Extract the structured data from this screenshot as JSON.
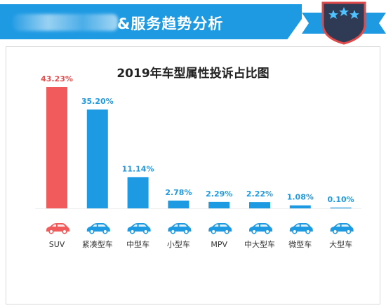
{
  "header": {
    "title": "&服务趋势分析"
  },
  "colors": {
    "header_band": "#1e9ae3",
    "bar_highlight": "#f15b5b",
    "bar_default": "#1e9ae3",
    "label_highlight": "#e84e4e",
    "label_default": "#1e9ae3"
  },
  "chart_data": {
    "type": "bar",
    "title": "2019年车型属性投诉占比图",
    "categories": [
      "SUV",
      "紧凑型车",
      "中型车",
      "小型车",
      "MPV",
      "中大型车",
      "微型车",
      "大型车"
    ],
    "values": [
      43.23,
      35.2,
      11.14,
      2.78,
      2.29,
      2.22,
      1.08,
      0.1
    ],
    "value_labels": [
      "43.23%",
      "35.20%",
      "11.14%",
      "2.78%",
      "2.29%",
      "2.22%",
      "1.08%",
      "0.10%"
    ],
    "highlight_index": 0,
    "category_icons": [
      "suv-icon",
      "car-icon",
      "car-icon",
      "hatchback-icon",
      "mpv-icon",
      "car-icon",
      "hatchback-icon",
      "car-icon"
    ],
    "ylim": [
      0,
      45
    ],
    "unit": "%",
    "grid": false,
    "legend": "none"
  }
}
